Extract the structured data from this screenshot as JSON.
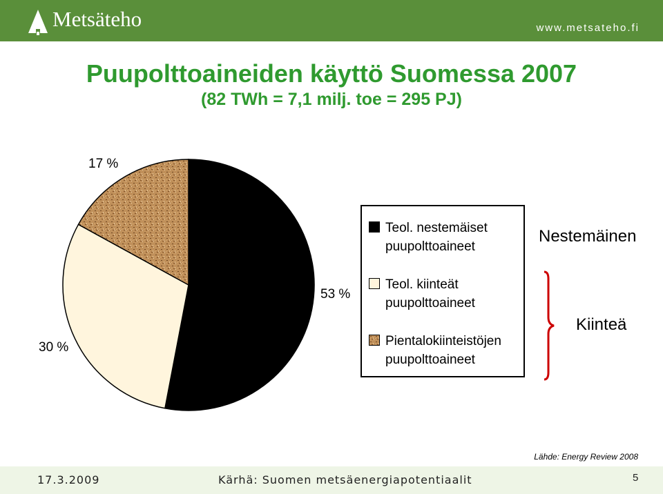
{
  "header": {
    "logo_text": "Metsäteho",
    "site_url": "www.metsateho.fi",
    "logo_icon": "tree-logo-icon"
  },
  "title": "Puupolttoaineiden käyttö Suomessa 2007",
  "subtitle": "(82 TWh = 7,1 milj. toe = 295 PJ)",
  "chart_data": {
    "type": "pie",
    "slices": [
      {
        "label": "Teol. nestemäiset puupolttoaineet",
        "value": 53,
        "label_text": "53 %",
        "color": "#000000"
      },
      {
        "label": "Teol. kiinteät puupolttoaineet",
        "value": 30,
        "label_text": "30 %",
        "color": "#fff5dd"
      },
      {
        "label": "Pientalokiinteistöjen puupolttoaineet",
        "value": 17,
        "label_text": "17 %",
        "color": "#c0905a"
      }
    ],
    "legend_placement": "right",
    "groups": [
      {
        "label": "Nestemäinen"
      },
      {
        "label": "Kiinteä"
      }
    ]
  },
  "source": "Lähde: Energy Review 2008",
  "footer": {
    "date": "17.3.2009",
    "center": "Kärhä: Suomen metsäenergiapotentiaalit",
    "page": "5"
  },
  "colors": {
    "header_bg": "#5a8f3a",
    "title": "#2f9a2f",
    "brace": "#cc0000",
    "footer_bg": "#eef5e6"
  }
}
